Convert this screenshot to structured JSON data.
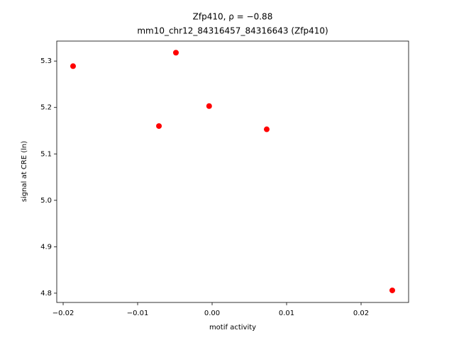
{
  "chart_data": {
    "type": "scatter",
    "title": "Zfp410, ρ = −0.88",
    "subtitle": "mm10_chr12_84316457_84316643 (Zfp410)",
    "x_label": "motif activity",
    "y_label": "signal at CRE (ln)",
    "color": "#ff0000",
    "x": [
      -0.01867,
      -0.00486,
      -0.00714,
      -0.0004,
      0.00733,
      0.02419
    ],
    "values": [
      5.289,
      5.318,
      5.16,
      5.203,
      5.153,
      4.806
    ],
    "xlim": [
      -0.02086,
      0.02638
    ],
    "ylim": [
      4.78,
      5.343
    ],
    "xticks": [
      {
        "value": -0.02,
        "label": "−0.02"
      },
      {
        "value": -0.01,
        "label": "−0.01"
      },
      {
        "value": 0,
        "label": "0.00"
      },
      0.01,
      0.02
    ],
    "yticks": [
      4.8,
      4.9,
      {
        "value": 5.0,
        "label": "5.0"
      },
      5.1,
      5.2,
      5.3
    ],
    "grid": false
  }
}
